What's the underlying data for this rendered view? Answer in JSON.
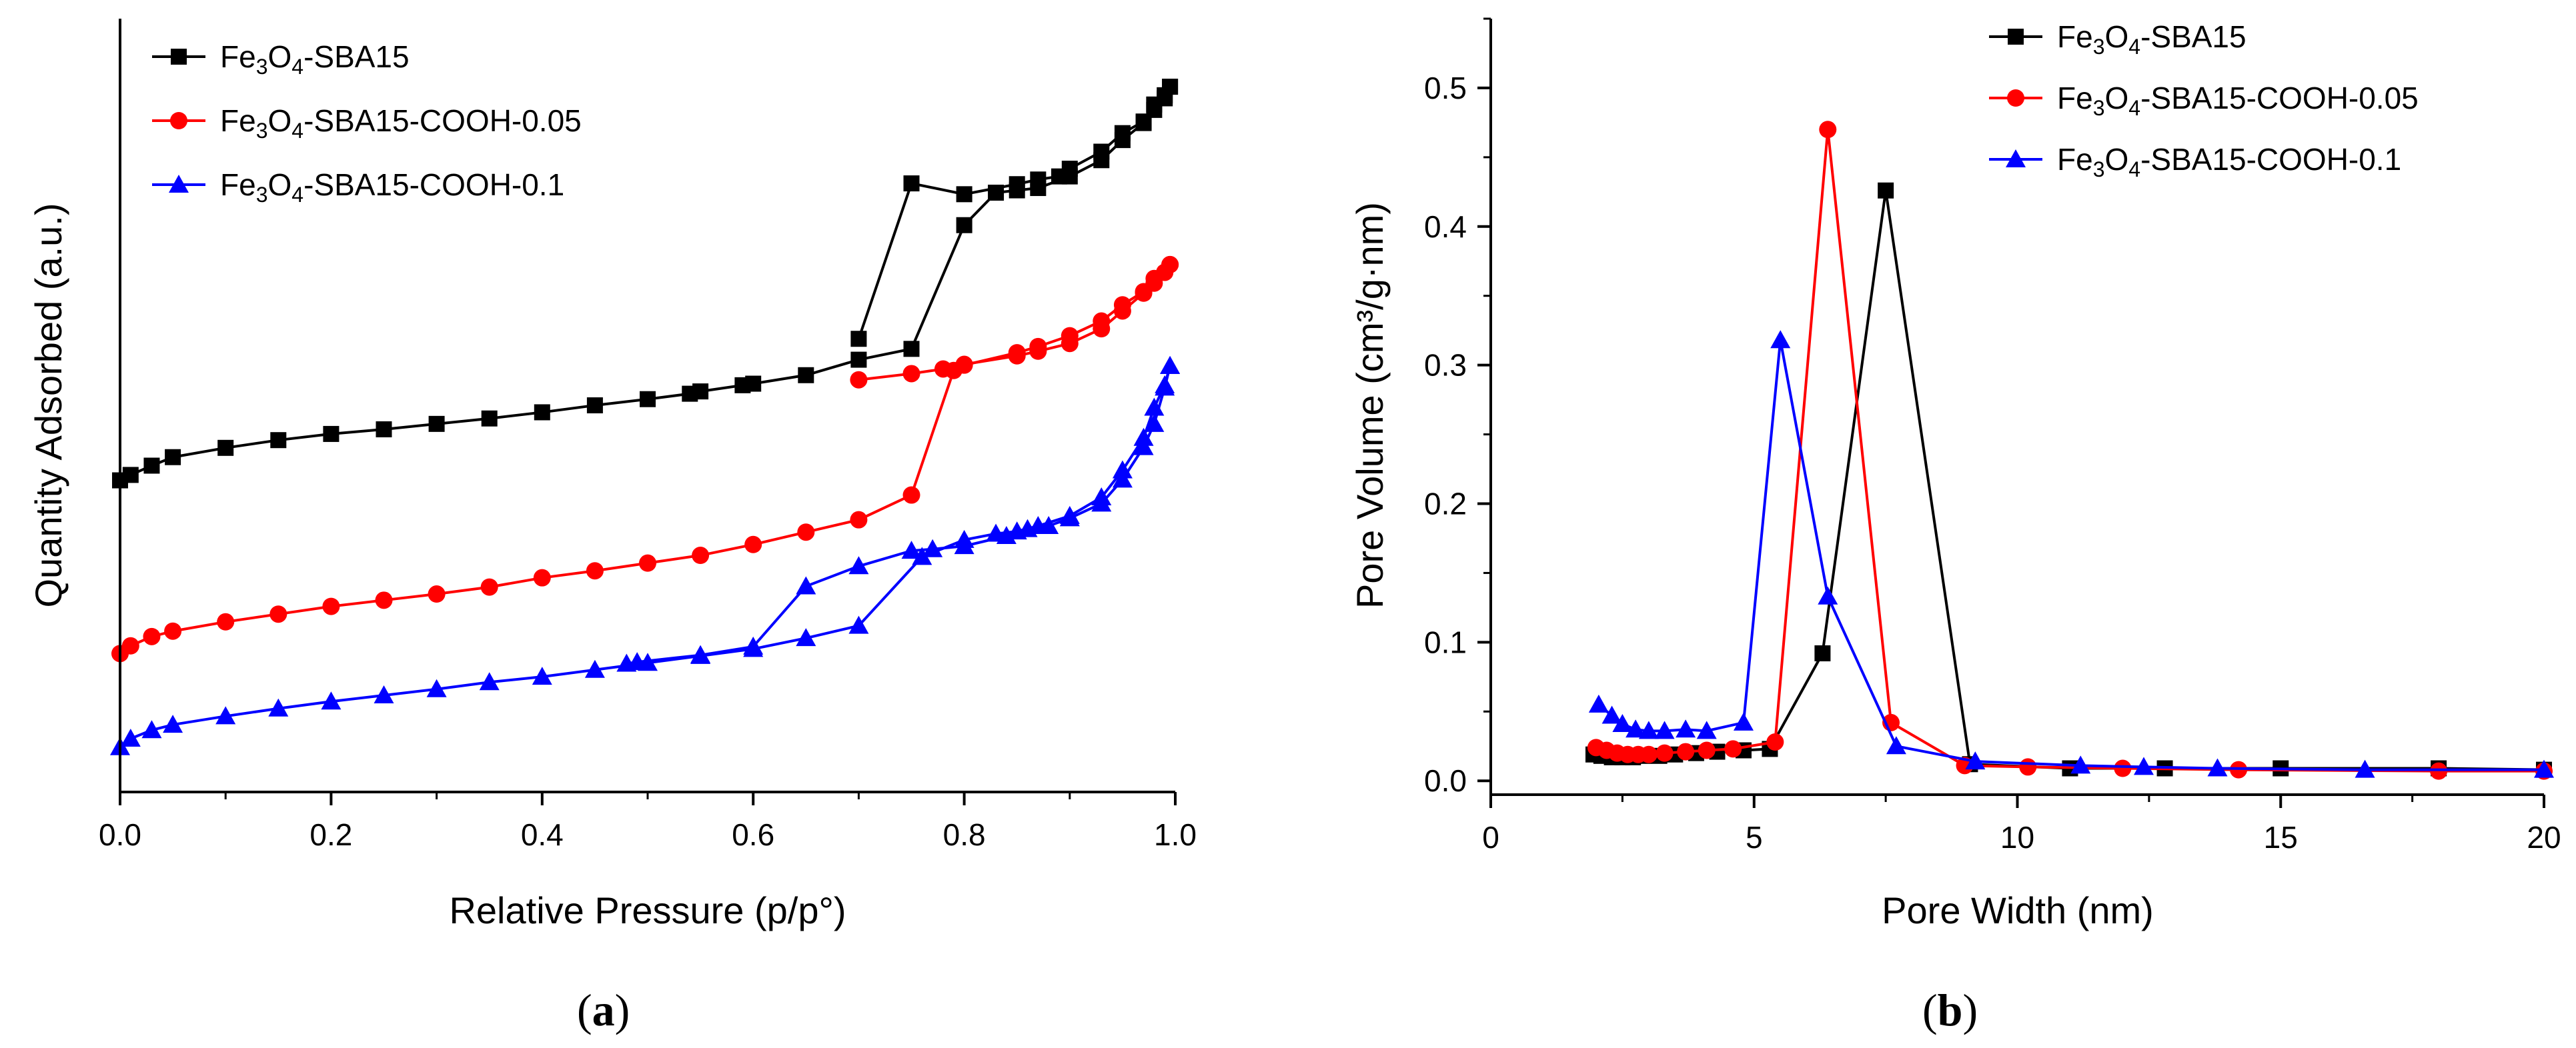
{
  "chart_data": [
    {
      "type": "line",
      "panel_label": "a",
      "xlabel": "Relative Pressure (p/p°)",
      "ylabel": "Quantity Adsorbed (a.u.)",
      "xlim": [
        0,
        1
      ],
      "ylim": [
        0,
        100
      ],
      "yticks_shown": false,
      "x_ticks": [
        0.0,
        0.2,
        0.4,
        0.6,
        0.8,
        1.0
      ],
      "x_tick_labels": [
        "0.0",
        "0.2",
        "0.4",
        "0.6",
        "0.8",
        "1.0"
      ],
      "legend_position": "top-left",
      "series": [
        {
          "name": "Fe3O4-SBA15",
          "legend": {
            "base1": "Fe",
            "sub1": "3",
            "base2": "O",
            "sub2": "4",
            "rest": "-SBA15"
          },
          "color": "#000000",
          "marker": "square",
          "adsorption": {
            "x": [
              0.0,
              0.01,
              0.03,
              0.05,
              0.1,
              0.15,
              0.2,
              0.25,
              0.3,
              0.35,
              0.4,
              0.45,
              0.5,
              0.54,
              0.55,
              0.59,
              0.6,
              0.65,
              0.7,
              0.75,
              0.8,
              0.83,
              0.85,
              0.87,
              0.9,
              0.93,
              0.95,
              0.97,
              0.98,
              0.99,
              0.995
            ],
            "y": [
              40.3,
              41.0,
              42.2,
              43.3,
              44.5,
              45.5,
              46.3,
              46.9,
              47.6,
              48.3,
              49.1,
              50.0,
              50.8,
              51.5,
              51.8,
              52.6,
              52.8,
              53.9,
              55.9,
              57.3,
              73.3,
              77.5,
              77.8,
              78.1,
              79.6,
              81.7,
              84.3,
              86.5,
              88.2,
              89.7,
              91.2
            ]
          },
          "desorption": {
            "x": [
              0.995,
              0.99,
              0.98,
              0.97,
              0.95,
              0.93,
              0.9,
              0.89,
              0.87,
              0.85,
              0.8,
              0.75,
              0.7
            ],
            "y": [
              91.2,
              90.1,
              88.9,
              86.7,
              85.2,
              82.8,
              80.6,
              79.6,
              79.2,
              78.6,
              77.3,
              78.7,
              58.6
            ]
          }
        },
        {
          "name": "Fe3O4-SBA15-COOH-0.05",
          "legend": {
            "base1": "Fe",
            "sub1": "3",
            "base2": "O",
            "sub2": "4",
            "rest": "-SBA15-COOH-0.05"
          },
          "color": "#ff0000",
          "marker": "circle",
          "adsorption": {
            "x": [
              0.0,
              0.01,
              0.03,
              0.05,
              0.1,
              0.15,
              0.2,
              0.25,
              0.3,
              0.35,
              0.4,
              0.45,
              0.5,
              0.55,
              0.6,
              0.65,
              0.7,
              0.75,
              0.79,
              0.8,
              0.85,
              0.87,
              0.9,
              0.93,
              0.95,
              0.97,
              0.98,
              0.99,
              0.995
            ],
            "y": [
              17.9,
              18.9,
              20.1,
              20.8,
              22.0,
              23.0,
              24.0,
              24.8,
              25.6,
              26.5,
              27.7,
              28.6,
              29.6,
              30.6,
              32.0,
              33.6,
              35.2,
              38.4,
              54.5,
              55.3,
              56.4,
              57.0,
              58.0,
              59.9,
              62.2,
              64.5,
              65.8,
              67.2,
              68.2
            ]
          },
          "desorption": {
            "x": [
              0.995,
              0.99,
              0.98,
              0.97,
              0.95,
              0.93,
              0.9,
              0.87,
              0.85,
              0.8,
              0.78,
              0.75,
              0.7
            ],
            "y": [
              68.2,
              67.2,
              66.4,
              64.7,
              63.0,
              60.9,
              59.0,
              57.6,
              56.8,
              55.2,
              54.7,
              54.1,
              53.3
            ]
          }
        },
        {
          "name": "Fe3O4-SBA15-COOH-0.1",
          "legend": {
            "base1": "Fe",
            "sub1": "3",
            "base2": "O",
            "sub2": "4",
            "rest": "-SBA15-COOH-0.1"
          },
          "color": "#0000ff",
          "marker": "triangle",
          "adsorption": {
            "x": [
              0.0,
              0.01,
              0.03,
              0.05,
              0.1,
              0.15,
              0.2,
              0.25,
              0.3,
              0.35,
              0.4,
              0.45,
              0.5,
              0.55,
              0.6,
              0.65,
              0.7,
              0.76,
              0.8,
              0.83,
              0.85,
              0.87,
              0.9,
              0.93,
              0.95,
              0.97,
              0.98,
              0.99,
              0.995
            ],
            "y": [
              5.8,
              6.9,
              8.0,
              8.7,
              9.8,
              10.8,
              11.7,
              12.5,
              13.3,
              14.2,
              14.9,
              15.8,
              16.7,
              17.6,
              18.5,
              19.9,
              21.5,
              30.4,
              32.6,
              33.4,
              33.7,
              34.4,
              35.7,
              38.1,
              41.6,
              45.8,
              49.7,
              52.6,
              55.1
            ]
          },
          "desorption": {
            "x": [
              0.995,
              0.99,
              0.98,
              0.97,
              0.95,
              0.93,
              0.9,
              0.88,
              0.86,
              0.84,
              0.8,
              0.77,
              0.75,
              0.7,
              0.65,
              0.6,
              0.55,
              0.49,
              0.48
            ],
            "y": [
              55.1,
              52.3,
              47.6,
              44.6,
              40.4,
              37.3,
              35.4,
              34.4,
              34.0,
              33.1,
              31.8,
              31.4,
              31.2,
              29.2,
              26.6,
              18.8,
              17.7,
              16.8,
              16.6
            ]
          }
        }
      ]
    },
    {
      "type": "line",
      "panel_label": "b",
      "xlabel": "Pore Width (nm)",
      "ylabel": "Pore Volume (cm³/g·nm)",
      "xlim": [
        0,
        20
      ],
      "ylim": [
        -0.01,
        0.55
      ],
      "x_ticks": [
        0,
        5,
        10,
        15,
        20
      ],
      "x_tick_labels": [
        "0",
        "5",
        "10",
        "15",
        "20"
      ],
      "y_ticks": [
        0.0,
        0.1,
        0.2,
        0.3,
        0.4,
        0.5
      ],
      "y_tick_labels": [
        "0.0",
        "0.1",
        "0.2",
        "0.3",
        "0.4",
        "0.5"
      ],
      "legend_position": "top-right",
      "series": [
        {
          "name": "Fe3O4-SBA15",
          "legend": {
            "base1": "Fe",
            "sub1": "3",
            "base2": "O",
            "sub2": "4",
            "rest": "-SBA15"
          },
          "color": "#000000",
          "marker": "square",
          "x": [
            1.95,
            2.1,
            2.3,
            2.5,
            2.7,
            2.9,
            3.2,
            3.5,
            3.9,
            4.3,
            4.8,
            5.3,
            6.3,
            7.5,
            9.1,
            11.0,
            12.8,
            15.0,
            18.0,
            20.0
          ],
          "y": [
            0.019,
            0.018,
            0.017,
            0.017,
            0.017,
            0.018,
            0.018,
            0.019,
            0.02,
            0.021,
            0.022,
            0.023,
            0.092,
            0.426,
            0.012,
            0.009,
            0.009,
            0.009,
            0.009,
            0.008
          ]
        },
        {
          "name": "Fe3O4-SBA15-COOH-0.05",
          "legend": {
            "base1": "Fe",
            "sub1": "3",
            "base2": "O",
            "sub2": "4",
            "rest": "-SBA15-COOH-0.05"
          },
          "color": "#ff0000",
          "marker": "circle",
          "x": [
            2.0,
            2.2,
            2.4,
            2.6,
            2.8,
            3.0,
            3.3,
            3.7,
            4.1,
            4.6,
            5.4,
            6.4,
            7.6,
            9.0,
            10.2,
            12.0,
            14.2,
            18.0,
            20.0
          ],
          "y": [
            0.024,
            0.022,
            0.02,
            0.019,
            0.019,
            0.019,
            0.02,
            0.021,
            0.022,
            0.023,
            0.028,
            0.47,
            0.042,
            0.011,
            0.01,
            0.009,
            0.008,
            0.007,
            0.007
          ]
        },
        {
          "name": "Fe3O4-SBA15-COOH-0.1",
          "legend": {
            "base1": "Fe",
            "sub1": "3",
            "base2": "O",
            "sub2": "4",
            "rest": "-SBA15-COOH-0.1"
          },
          "color": "#0000ff",
          "marker": "triangle",
          "x": [
            2.05,
            2.3,
            2.5,
            2.75,
            3.0,
            3.3,
            3.7,
            4.1,
            4.8,
            5.5,
            6.4,
            7.7,
            9.2,
            11.2,
            12.4,
            13.8,
            16.6,
            20.0
          ],
          "y": [
            0.055,
            0.047,
            0.041,
            0.037,
            0.036,
            0.036,
            0.037,
            0.036,
            0.042,
            0.318,
            0.133,
            0.025,
            0.014,
            0.011,
            0.01,
            0.009,
            0.008,
            0.008
          ]
        }
      ]
    }
  ]
}
